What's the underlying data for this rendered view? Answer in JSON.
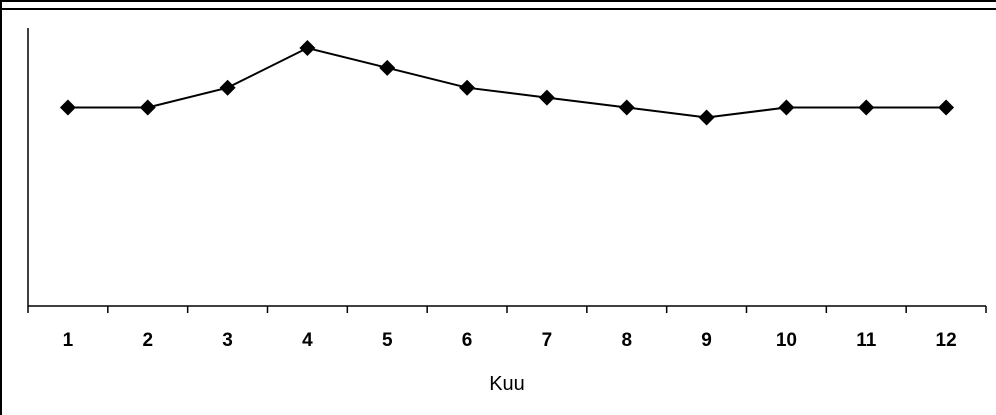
{
  "chart_data": {
    "type": "line",
    "title": "",
    "xlabel": "Kuu",
    "ylabel": "",
    "categories": [
      "1",
      "2",
      "3",
      "4",
      "5",
      "6",
      "7",
      "8",
      "9",
      "10",
      "11",
      "12"
    ],
    "series": [
      {
        "values": [
          100,
          100,
          102,
          106,
          104,
          102,
          101,
          100,
          99,
          100,
          100,
          100
        ],
        "marker": "diamond",
        "color": "#000000"
      }
    ],
    "ylim": [
      80,
      106
    ],
    "grid": false,
    "legend": "none",
    "y_tick_labels_shown": false
  }
}
